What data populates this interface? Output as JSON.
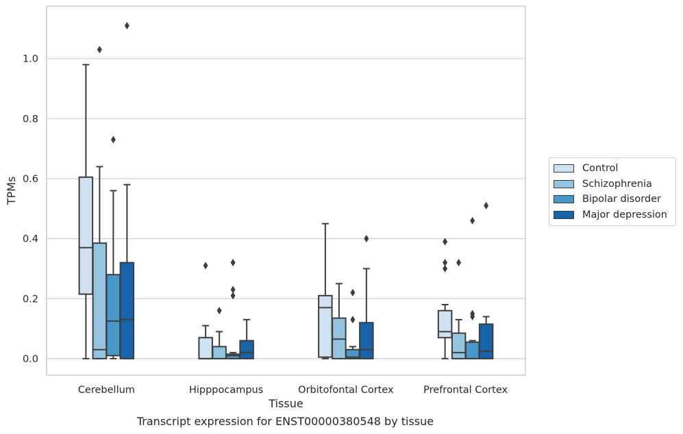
{
  "chart_data": {
    "type": "box",
    "xlabel": "Tissue",
    "ylabel": "TPMs",
    "ylim": [
      -0.055,
      1.175
    ],
    "yticks": [
      0.0,
      0.2,
      0.4,
      0.6,
      0.8,
      1.0
    ],
    "ytick_labels": [
      "0.0",
      "0.2",
      "0.4",
      "0.6",
      "0.8",
      "1.0"
    ],
    "grid": "horizontal",
    "legend_position": "right",
    "categories": [
      "Cerebellum",
      "Hipppocampus",
      "Orbitofontal Cortex",
      "Prefrontal Cortex"
    ],
    "series": [
      {
        "name": "Control",
        "color": "#d0e1f2",
        "boxes": [
          {
            "whislo": 0.0,
            "q1": 0.215,
            "med": 0.37,
            "q3": 0.605,
            "whishi": 0.98,
            "fliers": []
          },
          {
            "whislo": 0.0,
            "q1": 0.0,
            "med": 0.0,
            "q3": 0.07,
            "whishi": 0.11,
            "fliers": [
              0.31
            ]
          },
          {
            "whislo": 0.0,
            "q1": 0.005,
            "med": 0.17,
            "q3": 0.21,
            "whishi": 0.45,
            "fliers": []
          },
          {
            "whislo": 0.0,
            "q1": 0.07,
            "med": 0.09,
            "q3": 0.16,
            "whishi": 0.18,
            "fliers": [
              0.3,
              0.32,
              0.39
            ]
          }
        ]
      },
      {
        "name": "Schizophrenia",
        "color": "#94c4df",
        "boxes": [
          {
            "whislo": 0.0,
            "q1": 0.0,
            "med": 0.03,
            "q3": 0.385,
            "whishi": 0.64,
            "fliers": [
              1.03
            ]
          },
          {
            "whislo": 0.0,
            "q1": 0.0,
            "med": 0.0,
            "q3": 0.04,
            "whishi": 0.09,
            "fliers": [
              0.16
            ]
          },
          {
            "whislo": 0.0,
            "q1": 0.0,
            "med": 0.065,
            "q3": 0.135,
            "whishi": 0.25,
            "fliers": []
          },
          {
            "whislo": 0.0,
            "q1": 0.0,
            "med": 0.02,
            "q3": 0.085,
            "whishi": 0.13,
            "fliers": [
              0.32
            ]
          }
        ]
      },
      {
        "name": "Bipolar disorder",
        "color": "#4a98c9",
        "boxes": [
          {
            "whislo": 0.0,
            "q1": 0.01,
            "med": 0.125,
            "q3": 0.28,
            "whishi": 0.56,
            "fliers": [
              0.73
            ]
          },
          {
            "whislo": 0.0,
            "q1": 0.0,
            "med": 0.01,
            "q3": 0.015,
            "whishi": 0.02,
            "fliers": [
              0.21,
              0.23,
              0.32
            ]
          },
          {
            "whislo": 0.0,
            "q1": 0.0,
            "med": 0.005,
            "q3": 0.03,
            "whishi": 0.04,
            "fliers": [
              0.13,
              0.22
            ]
          },
          {
            "whislo": 0.0,
            "q1": 0.0,
            "med": 0.0,
            "q3": 0.055,
            "whishi": 0.06,
            "fliers": [
              0.14,
              0.15,
              0.46
            ]
          }
        ]
      },
      {
        "name": "Major depression",
        "color": "#1764ab",
        "boxes": [
          {
            "whislo": 0.0,
            "q1": 0.0,
            "med": 0.13,
            "q3": 0.32,
            "whishi": 0.58,
            "fliers": [
              1.11
            ]
          },
          {
            "whislo": 0.0,
            "q1": 0.0,
            "med": 0.02,
            "q3": 0.06,
            "whishi": 0.13,
            "fliers": []
          },
          {
            "whislo": 0.0,
            "q1": 0.0,
            "med": 0.03,
            "q3": 0.12,
            "whishi": 0.3,
            "fliers": [
              0.4
            ]
          },
          {
            "whislo": 0.0,
            "q1": 0.0,
            "med": 0.025,
            "q3": 0.115,
            "whishi": 0.14,
            "fliers": [
              0.51
            ]
          }
        ]
      }
    ],
    "caption": "Transcript expression for ENST00000380548 by tissue"
  }
}
